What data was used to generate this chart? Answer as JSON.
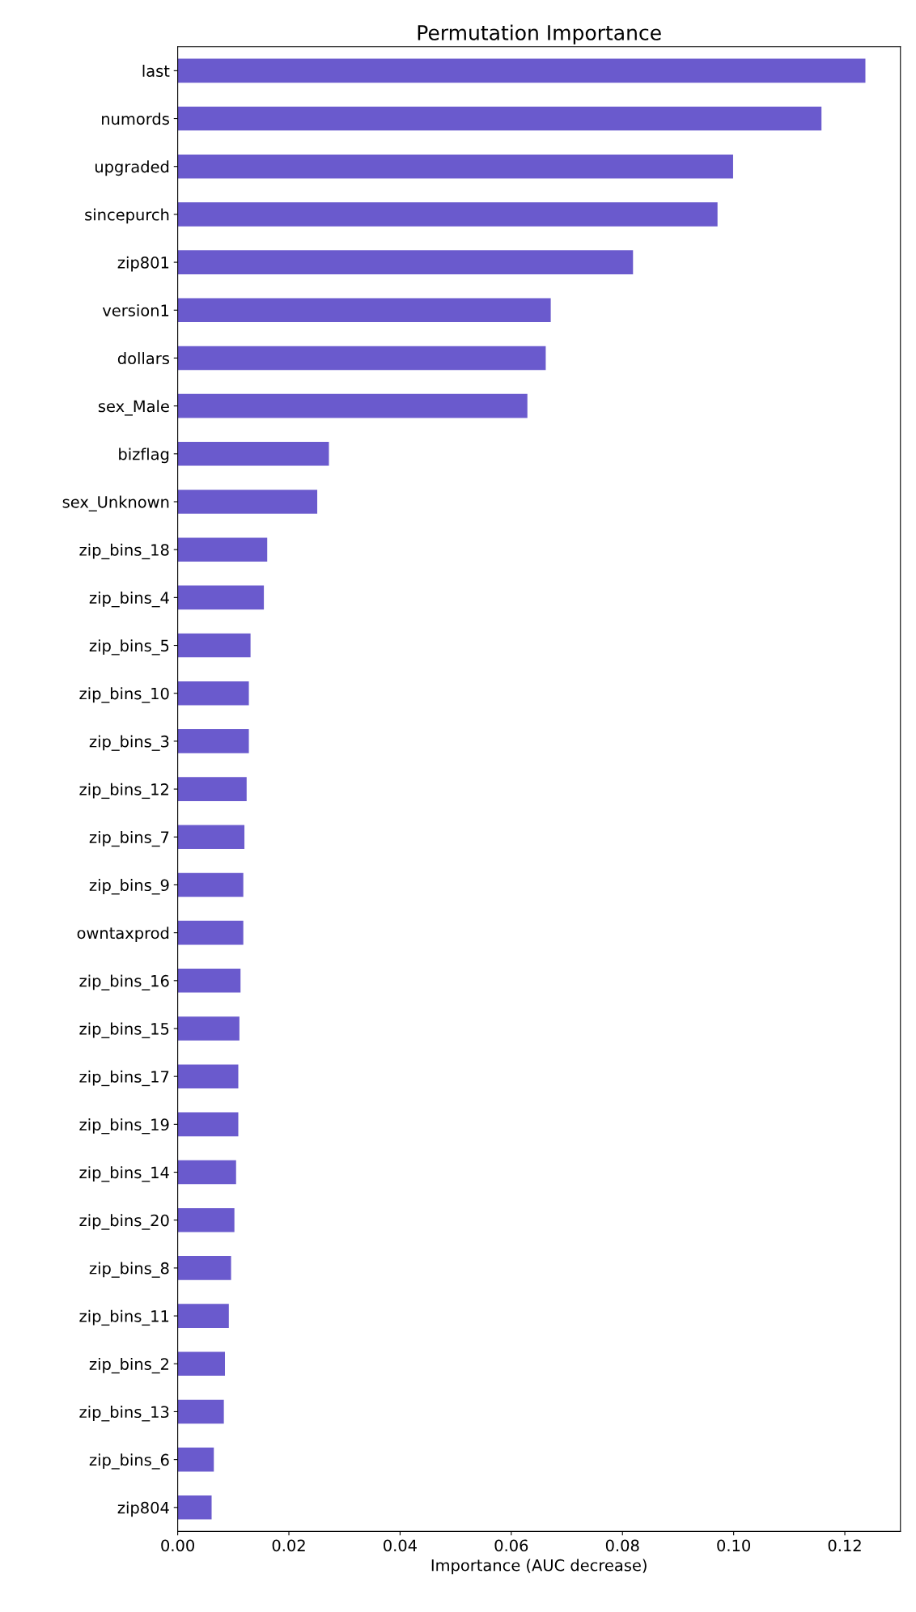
{
  "chart_data": {
    "type": "bar",
    "orientation": "horizontal",
    "title": "Permutation Importance",
    "xlabel": "Importance (AUC decrease)",
    "categories": [
      "last",
      "numords",
      "upgraded",
      "sincepurch",
      "zip801",
      "version1",
      "dollars",
      "sex_Male",
      "bizflag",
      "sex_Unknown",
      "zip_bins_18",
      "zip_bins_4",
      "zip_bins_5",
      "zip_bins_10",
      "zip_bins_3",
      "zip_bins_12",
      "zip_bins_7",
      "zip_bins_9",
      "owntaxprod",
      "zip_bins_16",
      "zip_bins_15",
      "zip_bins_17",
      "zip_bins_19",
      "zip_bins_14",
      "zip_bins_20",
      "zip_bins_8",
      "zip_bins_11",
      "zip_bins_2",
      "zip_bins_13",
      "zip_bins_6",
      "zip804"
    ],
    "values": [
      0.1237,
      0.1158,
      0.0999,
      0.0971,
      0.0819,
      0.0671,
      0.0662,
      0.0629,
      0.0272,
      0.0251,
      0.0161,
      0.0155,
      0.0131,
      0.0128,
      0.0128,
      0.0124,
      0.012,
      0.0118,
      0.0118,
      0.0113,
      0.0111,
      0.0109,
      0.0109,
      0.0105,
      0.0102,
      0.0096,
      0.0092,
      0.0085,
      0.0083,
      0.0065,
      0.0061
    ],
    "color": "#6a5acd",
    "xlim": [
      0,
      0.13
    ],
    "xticks": [
      {
        "value": 0,
        "label": "0.00"
      },
      {
        "value": 0.02,
        "label": "0.02"
      },
      {
        "value": 0.04,
        "label": "0.04"
      },
      {
        "value": 0.06,
        "label": "0.06"
      },
      {
        "value": 0.08,
        "label": "0.08"
      },
      {
        "value": 0.1,
        "label": "0.10"
      },
      {
        "value": 0.12,
        "label": "0.12"
      }
    ],
    "grid": false,
    "legend": false
  }
}
